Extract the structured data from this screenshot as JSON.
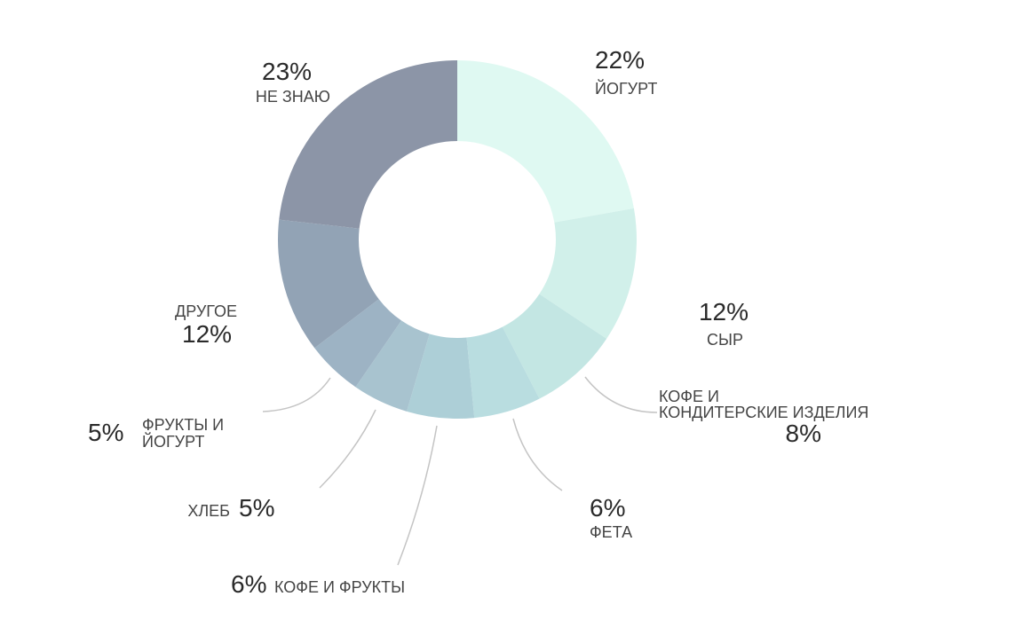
{
  "chart_data": {
    "type": "pie",
    "variant": "donut",
    "slices": [
      {
        "name": "ЙОГУРТ",
        "percent_label": "22%",
        "value": 22,
        "color": "#dff9f2"
      },
      {
        "name": "СЫР",
        "percent_label": "12%",
        "value": 12,
        "color": "#d1f0ea"
      },
      {
        "name_lines": [
          "КОФЕ И",
          "КОНДИТЕРСКИЕ ИЗДЕЛИЯ"
        ],
        "percent_label": "8%",
        "value": 8,
        "color": "#c3e6e3"
      },
      {
        "name": "ФЕТА",
        "percent_label": "6%",
        "value": 6,
        "color": "#b9dde0"
      },
      {
        "name": "КОФЕ И ФРУКТЫ",
        "percent_label": "6%",
        "value": 6,
        "color": "#adcfd7"
      },
      {
        "name": "ХЛЕБ",
        "percent_label": "5%",
        "value": 5,
        "color": "#a8c3cf"
      },
      {
        "name_lines": [
          "ФРУКТЫ И",
          "ЙОГУРТ"
        ],
        "percent_label": "5%",
        "value": 5,
        "color": "#9db3c4"
      },
      {
        "name": "ДРУГОЕ",
        "percent_label": "12%",
        "value": 12,
        "color": "#92a3b5"
      },
      {
        "name": "НЕ ЗНАЮ",
        "percent_label": "23%",
        "value": 23,
        "color": "#8c95a7"
      }
    ]
  }
}
